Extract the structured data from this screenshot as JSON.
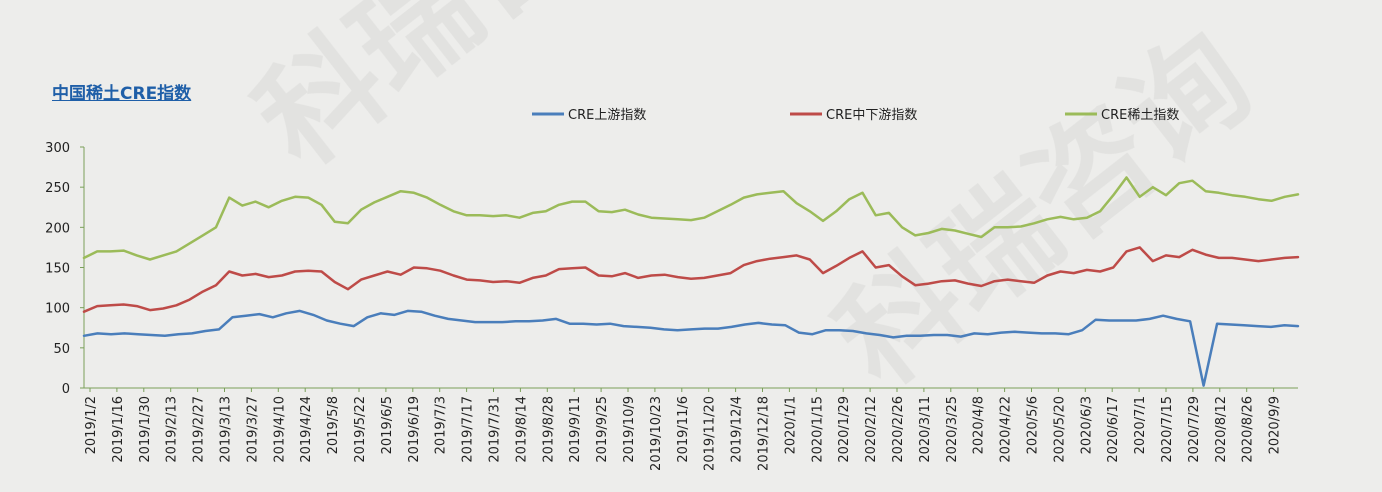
{
  "title": "中国稀土CRE指数",
  "watermark_text": "科瑞咨询",
  "chart_data": {
    "type": "line",
    "title": "中国稀土CRE指数",
    "xlabel": "",
    "ylabel": "",
    "ylim": [
      0,
      300
    ],
    "y_ticks": [
      0,
      50,
      100,
      150,
      200,
      250,
      300
    ],
    "x_tick_labels": [
      "2019/1/2",
      "2019/1/16",
      "2019/1/30",
      "2019/2/13",
      "2019/2/27",
      "2019/3/13",
      "2019/3/27",
      "2019/4/10",
      "2019/4/24",
      "2019/5/8",
      "2019/5/22",
      "2019/6/5",
      "2019/6/19",
      "2019/7/3",
      "2019/7/17",
      "2019/7/31",
      "2019/8/14",
      "2019/8/28",
      "2019/9/11",
      "2019/9/25",
      "2019/10/9",
      "2019/10/23",
      "2019/11/6",
      "2019/11/20",
      "2019/12/4",
      "2019/12/18",
      "2020/1/1",
      "2020/1/15",
      "2020/1/29",
      "2020/2/12",
      "2020/2/26",
      "2020/3/11",
      "2020/3/25",
      "2020/4/8",
      "2020/4/22",
      "2020/5/6",
      "2020/5/20",
      "2020/6/3",
      "2020/6/17",
      "2020/7/1",
      "2020/7/15",
      "2020/7/29",
      "2020/8/12",
      "2020/8/26",
      "2020/9/9"
    ],
    "grid": false,
    "legend": "top",
    "series": [
      {
        "name": "CRE上游指数",
        "color": "#4a7ebb",
        "values": [
          65,
          68,
          67,
          68,
          67,
          66,
          65,
          67,
          68,
          71,
          73,
          88,
          90,
          92,
          88,
          93,
          96,
          91,
          84,
          80,
          77,
          88,
          93,
          91,
          96,
          95,
          90,
          86,
          84,
          82,
          82,
          82,
          83,
          83,
          84,
          86,
          80,
          80,
          79,
          80,
          77,
          76,
          75,
          73,
          72,
          73,
          74,
          74,
          76,
          79,
          81,
          79,
          78,
          69,
          67,
          72,
          72,
          71,
          68,
          66,
          63,
          65,
          65,
          66,
          66,
          64,
          68,
          67,
          69,
          70,
          69,
          68,
          68,
          67,
          72,
          85,
          84,
          84,
          84,
          86,
          90,
          86,
          83,
          3,
          80,
          79,
          78,
          77,
          76,
          78,
          77
        ]
      },
      {
        "name": "CRE中下游指数",
        "color": "#be4b48",
        "values": [
          95,
          102,
          103,
          104,
          102,
          97,
          99,
          103,
          110,
          120,
          128,
          145,
          140,
          142,
          138,
          140,
          145,
          146,
          145,
          132,
          123,
          135,
          140,
          145,
          141,
          150,
          149,
          146,
          140,
          135,
          134,
          132,
          133,
          131,
          137,
          140,
          148,
          149,
          150,
          140,
          139,
          143,
          137,
          140,
          141,
          138,
          136,
          137,
          140,
          143,
          153,
          158,
          161,
          163,
          165,
          160,
          143,
          152,
          162,
          170,
          150,
          153,
          139,
          128,
          130,
          133,
          134,
          130,
          127,
          133,
          135,
          133,
          131,
          140,
          145,
          143,
          147,
          145,
          150,
          170,
          175,
          158,
          165,
          163,
          172,
          166,
          162,
          162,
          160,
          158,
          160,
          162,
          163
        ]
      },
      {
        "name": "CRE稀土指数",
        "color": "#9bbb59",
        "values": [
          162,
          170,
          170,
          171,
          165,
          160,
          165,
          170,
          180,
          190,
          200,
          237,
          227,
          232,
          225,
          233,
          238,
          237,
          228,
          207,
          205,
          222,
          231,
          238,
          245,
          243,
          237,
          228,
          220,
          215,
          215,
          214,
          215,
          212,
          218,
          220,
          228,
          232,
          232,
          220,
          219,
          222,
          216,
          212,
          211,
          210,
          209,
          212,
          220,
          228,
          237,
          241,
          243,
          245,
          230,
          220,
          208,
          220,
          235,
          243,
          215,
          218,
          200,
          190,
          193,
          198,
          196,
          192,
          188,
          200,
          200,
          201,
          205,
          210,
          213,
          210,
          212,
          220,
          240,
          262,
          238,
          250,
          240,
          255,
          258,
          245,
          243,
          240,
          238,
          235,
          233,
          238,
          241
        ]
      }
    ]
  }
}
